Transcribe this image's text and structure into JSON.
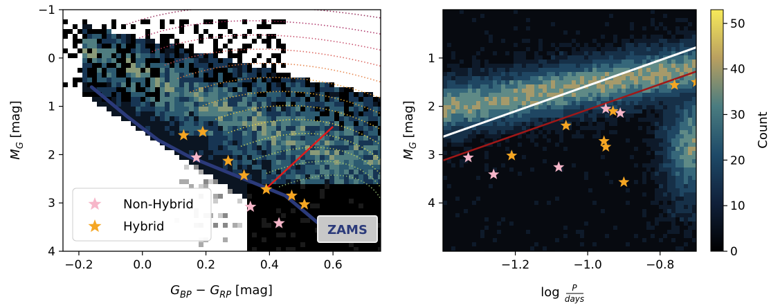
{
  "chart_data": [
    {
      "type": "heatmap",
      "xlabel_main": "G",
      "xlabel_sub1": "BP",
      "xlabel_sub2": "RP",
      "xlabel_units": "[mag]",
      "ylabel_main": "M",
      "ylabel_sub": "G",
      "ylabel_units": "[mag]",
      "xlim": [
        -0.25,
        0.75
      ],
      "ylim": [
        4,
        -1
      ],
      "yaxis_inverted": true,
      "xticks": [
        -0.2,
        0.0,
        0.2,
        0.4,
        0.6
      ],
      "xtick_labels": [
        "−0.2",
        "0.0",
        "0.2",
        "0.4",
        "0.6"
      ],
      "yticks": [
        -1,
        0,
        1,
        2,
        3,
        4
      ],
      "ytick_labels": [
        "−1",
        "0",
        "1",
        "2",
        "3",
        "4"
      ],
      "zams_label": "ZAMS",
      "zams_color": "#2b3a7a",
      "zams_line": [
        [
          -0.16,
          0.6
        ],
        [
          -0.05,
          1.2
        ],
        [
          0.05,
          1.7
        ],
        [
          0.15,
          2.05
        ],
        [
          0.3,
          2.45
        ],
        [
          0.45,
          2.85
        ],
        [
          0.55,
          3.4
        ]
      ],
      "red_line": [
        [
          0.39,
          2.7
        ],
        [
          0.6,
          1.42
        ]
      ],
      "legend_position": "lower-left",
      "series": [
        {
          "name": "Non-Hybrid",
          "color": "#f7b6c9",
          "x": [
            0.17,
            0.34,
            0.43
          ],
          "y": [
            2.06,
            3.08,
            3.42
          ]
        },
        {
          "name": "Hybrid",
          "color": "#f5a623",
          "x": [
            0.13,
            0.19,
            0.27,
            0.32,
            0.39,
            0.47,
            0.51
          ],
          "y": [
            1.6,
            1.53,
            2.13,
            2.43,
            2.72,
            2.85,
            3.03
          ]
        }
      ]
    },
    {
      "type": "heatmap",
      "xlabel_main": "log",
      "xlabel_num": "P",
      "xlabel_den": "days",
      "ylabel_main": "M",
      "ylabel_sub": "G",
      "ylabel_units": "[mag]",
      "xlim": [
        -1.4,
        -0.7
      ],
      "ylim": [
        5,
        0
      ],
      "yaxis_inverted": true,
      "xticks": [
        -1.2,
        -1.0,
        -0.8
      ],
      "xtick_labels": [
        "−1.2",
        "−1.0",
        "−0.8"
      ],
      "yticks": [
        1,
        2,
        3,
        4
      ],
      "ytick_labels": [
        "1",
        "2",
        "3",
        "4"
      ],
      "colorbar": {
        "label": "Count",
        "range": [
          0,
          53
        ],
        "ticks": [
          0,
          10,
          20,
          30,
          40,
          50
        ],
        "tick_labels": [
          "0",
          "10",
          "20",
          "30",
          "40",
          "50"
        ]
      },
      "white_line": [
        [
          -1.4,
          2.63
        ],
        [
          -0.7,
          0.78
        ]
      ],
      "darkred_line": [
        [
          -1.4,
          3.12
        ],
        [
          -0.7,
          1.28
        ]
      ],
      "series": [
        {
          "name": "Non-Hybrid",
          "color": "#f7b6c9",
          "x": [
            -1.33,
            -1.26,
            -1.08,
            -0.95,
            -0.91
          ],
          "y": [
            3.06,
            3.41,
            3.26,
            2.05,
            2.14
          ]
        },
        {
          "name": "Hybrid",
          "color": "#f5a623",
          "x": [
            -1.21,
            -1.06,
            -0.93,
            -0.955,
            -0.95,
            -0.9,
            -0.76,
            -0.7
          ],
          "y": [
            3.02,
            2.4,
            2.1,
            2.72,
            2.84,
            3.57,
            1.56,
            1.5
          ]
        }
      ]
    }
  ]
}
